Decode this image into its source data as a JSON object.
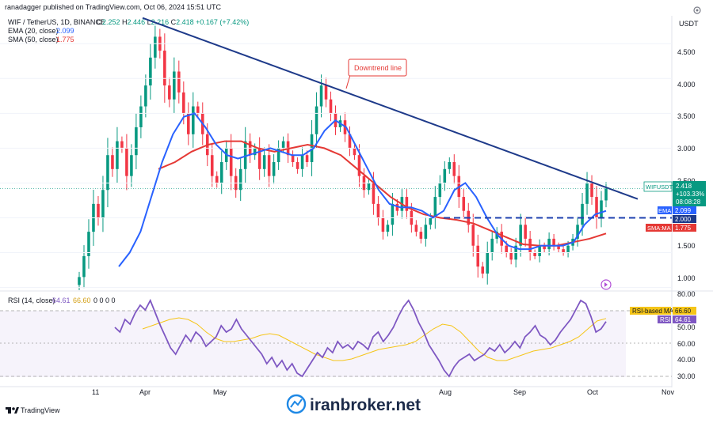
{
  "header": {
    "published_by": "ranadagger published on TradingView.com, Oct 06, 2024 15:51 UTC",
    "symbol_line": "WIF / TetherUS, 1D, BINANCE",
    "ohlc": [
      {
        "k": "O",
        "v": "2.252"
      },
      {
        "k": "H",
        "v": "2.446"
      },
      {
        "k": "L",
        "v": "2.216"
      },
      {
        "k": "C",
        "v": "2.418"
      }
    ],
    "change": "+0.167 (+7.42%)",
    "ema_label": "EMA (20, close)",
    "ema_value": "2.099",
    "sma_label": "SMA (50, close)",
    "sma_value": "1.775",
    "currency": "USDT"
  },
  "annotation": {
    "downtrend_label": "Downtrend line"
  },
  "price_axis": {
    "ticks": [
      "4.500",
      "4.000",
      "3.500",
      "3.000",
      "2.500",
      "1.500",
      "1.000"
    ],
    "badge_symbol": "WIFUSDT",
    "badge_price": "2.418",
    "badge_change": "+103.33%",
    "badge_timer": "08:08:28",
    "ema_tag": "EMA",
    "ema_tag_value": "2.099",
    "level_tag_value": "2.000",
    "sma_tag": "SMA:MA",
    "sma_tag_value": "1.775"
  },
  "rsi": {
    "label": "RSI (14, close)",
    "value": "64.61",
    "ma_value": "66.60",
    "extras": "0 0 0 0",
    "ticks": [
      "80.00",
      "60.00",
      "50.00",
      "40.00",
      "30.00"
    ],
    "ma_tag": "RSI-based MA",
    "ma_tag_value": "66.60",
    "rsi_tag": "RSI",
    "rsi_tag_value": "64.61"
  },
  "time_axis": {
    "labels": [
      "11",
      "Apr",
      "May",
      "Aug",
      "Sep",
      "Oct",
      "Nov"
    ]
  },
  "footer": {
    "tv_logo_text": "TradingView",
    "watermark": "iranbroker.net"
  },
  "colors": {
    "up": "#089981",
    "down": "#f23645",
    "ema": "#2962ff",
    "sma": "#e53935",
    "trend": "#1e3a8a",
    "level": "#1e40af",
    "rsi": "#7e57c2",
    "rsi_ma": "#f5c518"
  },
  "chart_data": {
    "type": "candlestick",
    "x_axis": [
      "11",
      "Apr",
      "May",
      "Aug",
      "Sep",
      "Oct",
      "Nov"
    ],
    "y_range": [
      0.95,
      4.9
    ],
    "y_ticks": [
      1.0,
      1.5,
      2.0,
      2.5,
      3.0,
      3.5,
      4.0,
      4.5
    ],
    "closes": [
      1.15,
      1.45,
      1.8,
      2.2,
      2.0,
      2.4,
      2.9,
      2.7,
      3.1,
      3.0,
      2.6,
      2.9,
      3.3,
      3.6,
      3.9,
      4.3,
      4.6,
      4.4,
      3.9,
      3.7,
      4.1,
      3.8,
      3.5,
      3.2,
      3.6,
      3.5,
      3.2,
      2.9,
      2.6,
      2.5,
      2.8,
      3.0,
      2.6,
      2.4,
      2.7,
      3.1,
      2.9,
      3.0,
      2.7,
      2.9,
      2.6,
      2.8,
      3.0,
      3.1,
      2.9,
      2.8,
      2.7,
      2.9,
      2.8,
      3.2,
      3.6,
      3.9,
      3.7,
      3.5,
      3.3,
      3.4,
      3.2,
      3.0,
      2.9,
      2.6,
      2.4,
      2.5,
      2.2,
      2.0,
      1.8,
      1.9,
      2.2,
      2.1,
      2.3,
      2.1,
      1.9,
      1.8,
      1.7,
      1.9,
      2.0,
      2.3,
      2.5,
      2.7,
      2.8,
      2.6,
      2.3,
      2.1,
      1.9,
      1.6,
      1.3,
      1.2,
      1.5,
      1.7,
      1.8,
      1.6,
      1.5,
      1.4,
      1.6,
      1.9,
      1.7,
      1.5,
      1.45,
      1.6,
      1.55,
      1.7,
      1.6,
      1.55,
      1.5,
      1.6,
      1.7,
      1.9,
      2.2,
      2.5,
      2.3,
      2.0,
      2.25,
      2.418
    ],
    "ema20": [
      1.3,
      1.5,
      1.8,
      2.3,
      2.8,
      3.2,
      3.45,
      3.5,
      3.3,
      3.05,
      2.9,
      2.85,
      2.9,
      2.95,
      3.0,
      2.95,
      2.9,
      2.9,
      3.0,
      3.25,
      3.4,
      3.3,
      3.0,
      2.7,
      2.4,
      2.2,
      2.15,
      2.15,
      2.1,
      2.0,
      2.1,
      2.4,
      2.5,
      2.3,
      2.0,
      1.75,
      1.6,
      1.55,
      1.55,
      1.6,
      1.6,
      1.6,
      1.65,
      1.9,
      2.05,
      2.1
    ],
    "sma50": [
      2.7,
      2.8,
      2.95,
      3.05,
      3.1,
      3.1,
      3.0,
      2.95,
      3.0,
      3.05,
      3.0,
      2.9,
      2.7,
      2.5,
      2.3,
      2.15,
      2.05,
      2.0,
      1.97,
      1.92,
      1.82,
      1.72,
      1.62,
      1.6,
      1.6,
      1.65,
      1.7,
      1.775
    ],
    "downtrend_line": {
      "from_price": 4.87,
      "to_price": 2.27
    },
    "support_level": 2.0,
    "rsi14": [
      61,
      58,
      66,
      63,
      70,
      75,
      72,
      78,
      70,
      62,
      55,
      48,
      44,
      50,
      56,
      52,
      58,
      55,
      49,
      52,
      55,
      62,
      58,
      60,
      66,
      60,
      56,
      52,
      48,
      44,
      38,
      42,
      36,
      40,
      34,
      38,
      32,
      30,
      35,
      40,
      45,
      42,
      48,
      45,
      52,
      48,
      50,
      47,
      52,
      50,
      47,
      55,
      58,
      52,
      56,
      61,
      68,
      74,
      78,
      72,
      64,
      58,
      50,
      45,
      40,
      34,
      30,
      36,
      40,
      42,
      44,
      40,
      42,
      44,
      48,
      46,
      50,
      45,
      48,
      52,
      48,
      55,
      58,
      62,
      56,
      54,
      50,
      53,
      58,
      62,
      66,
      72,
      78,
      76,
      68,
      58,
      60,
      64.61
    ],
    "rsi_ma": [
      60,
      62,
      64,
      66,
      67,
      66,
      63,
      58,
      54,
      52,
      52,
      53,
      54,
      56,
      57,
      56,
      53,
      50,
      47,
      44,
      42,
      40,
      40,
      41,
      43,
      45,
      47,
      48,
      49,
      50,
      52,
      56,
      60,
      63,
      62,
      58,
      52,
      46,
      42,
      40,
      40,
      42,
      44,
      46,
      47,
      48,
      50,
      52,
      55,
      60,
      65,
      66.6
    ],
    "rsi_range": [
      25,
      82
    ]
  }
}
